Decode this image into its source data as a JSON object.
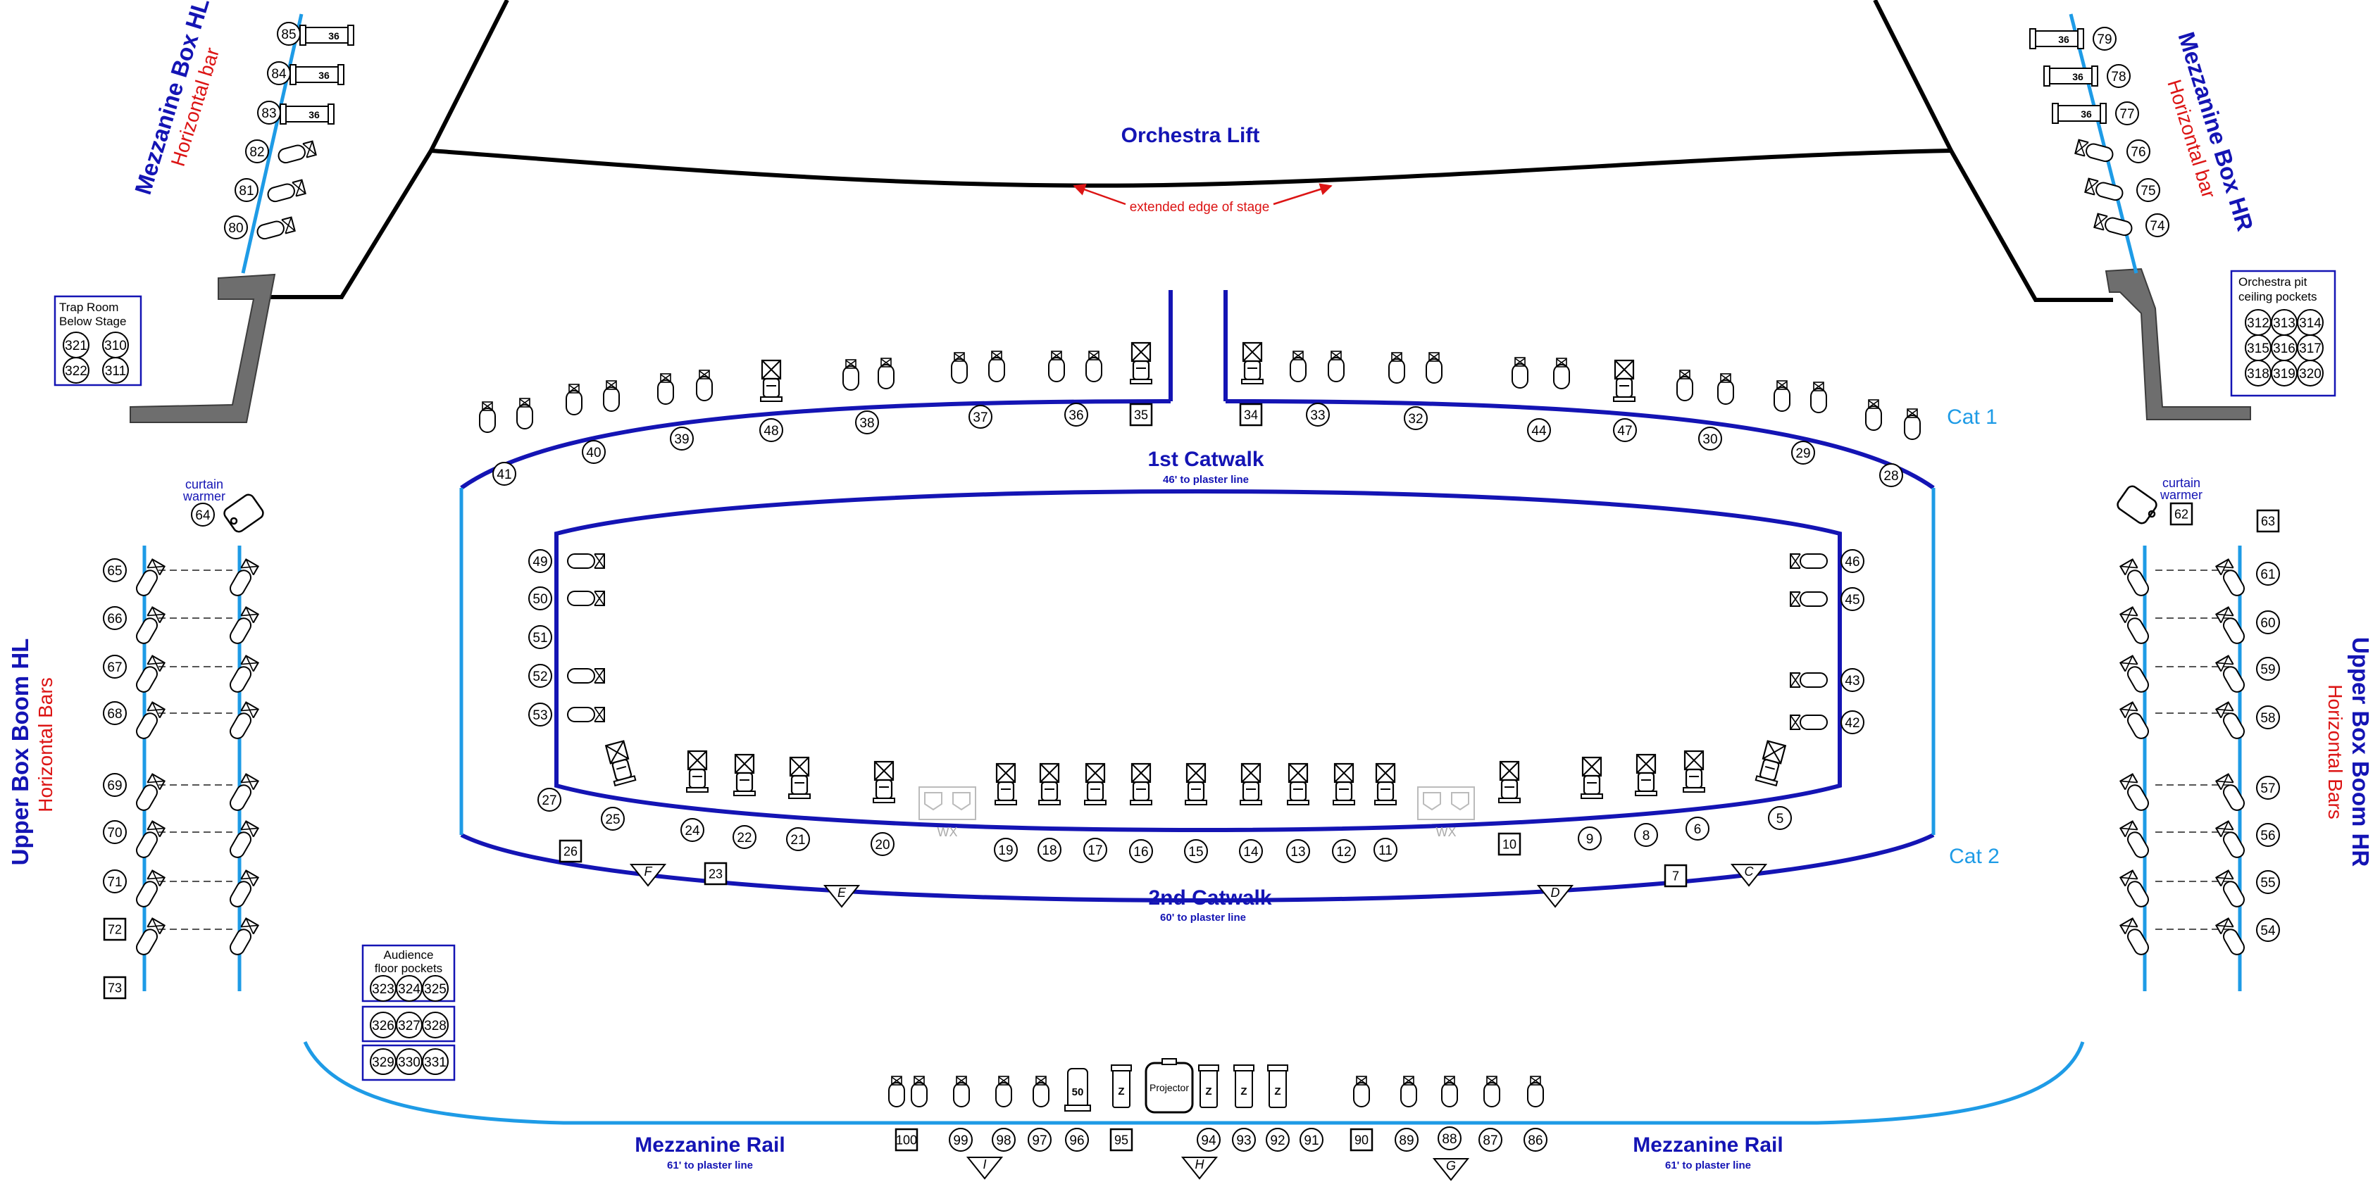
{
  "title": "Orchestra Lift",
  "stage_note": "extended edge of stage",
  "mezzanine_left": {
    "title": "Mezzanine Box HL",
    "subtitle": "Horizontal bar"
  },
  "mezzanine_right": {
    "title": "Mezzanine Box HR",
    "subtitle": "Horizontal bar"
  },
  "upper_left": {
    "title": "Upper Box Boom HL",
    "subtitle": "Horizontal Bars"
  },
  "upper_right": {
    "title": "Upper Box Boom HR",
    "subtitle": "Horizontal Bars"
  },
  "curtain_warmer": "curtain warmer",
  "cat1": {
    "title": "1st Catwalk",
    "note": "46' to plaster line",
    "tag": "Cat 1"
  },
  "cat2": {
    "title": "2nd Catwalk",
    "note": "60' to plaster line",
    "tag": "Cat 2"
  },
  "rail": {
    "title": "Mezzanine Rail",
    "note": "61' to plaster line"
  },
  "trap_room": {
    "title": "Trap Room Below Stage",
    "numbers": [
      "321",
      "310",
      "322",
      "311"
    ]
  },
  "pit_pockets": {
    "title": "Orchestra pit ceiling pockets",
    "numbers": [
      "312",
      "313",
      "314",
      "315",
      "316",
      "317",
      "318",
      "319",
      "320"
    ]
  },
  "audience_pockets": {
    "title": "Audience floor pockets",
    "numbers": [
      "323",
      "324",
      "325",
      "326",
      "327",
      "328",
      "329",
      "330",
      "331"
    ]
  },
  "projector": "Projector",
  "wx": "WX",
  "z": "Z",
  "lamp_36": "36",
  "lamp_50": "50",
  "mez_hl_channels": [
    "85",
    "84",
    "83",
    "82",
    "81",
    "80"
  ],
  "mez_hr_channels": [
    "79",
    "78",
    "77",
    "76",
    "75",
    "74"
  ],
  "cat1_channels": [
    "41",
    "40",
    "39",
    "48",
    "38",
    "37",
    "36",
    "35",
    "34",
    "33",
    "32",
    "44",
    "47",
    "30",
    "29",
    "28"
  ],
  "cat2_inner_left": [
    "49",
    "50",
    "51",
    "52",
    "53"
  ],
  "cat2_inner_right": [
    "46",
    "45",
    "43",
    "42"
  ],
  "cat2_channels": [
    "27",
    "25",
    "24",
    "22",
    "21",
    "20",
    "19",
    "18",
    "17",
    "16",
    "15",
    "14",
    "13",
    "12",
    "11",
    "10",
    "9",
    "8",
    "6",
    "5",
    "26",
    "23",
    "7"
  ],
  "boom_left_channels": [
    "64",
    "65",
    "66",
    "67",
    "68",
    "69",
    "70",
    "71",
    "72",
    "73"
  ],
  "boom_right_channels": [
    "62",
    "63",
    "61",
    "60",
    "59",
    "58",
    "57",
    "56",
    "55",
    "54"
  ],
  "rail_channels": [
    "100",
    "99",
    "98",
    "97",
    "96",
    "95",
    "94",
    "93",
    "92",
    "91",
    "90",
    "89",
    "88",
    "87",
    "86"
  ],
  "drop_labels": [
    "F",
    "E",
    "D",
    "C",
    "I",
    "H",
    "G"
  ],
  "colors": {
    "navy": "#1414b4",
    "light_blue": "#1e9be6",
    "red": "#dc1414",
    "black": "#000000",
    "gray": "#6e6e6e"
  }
}
